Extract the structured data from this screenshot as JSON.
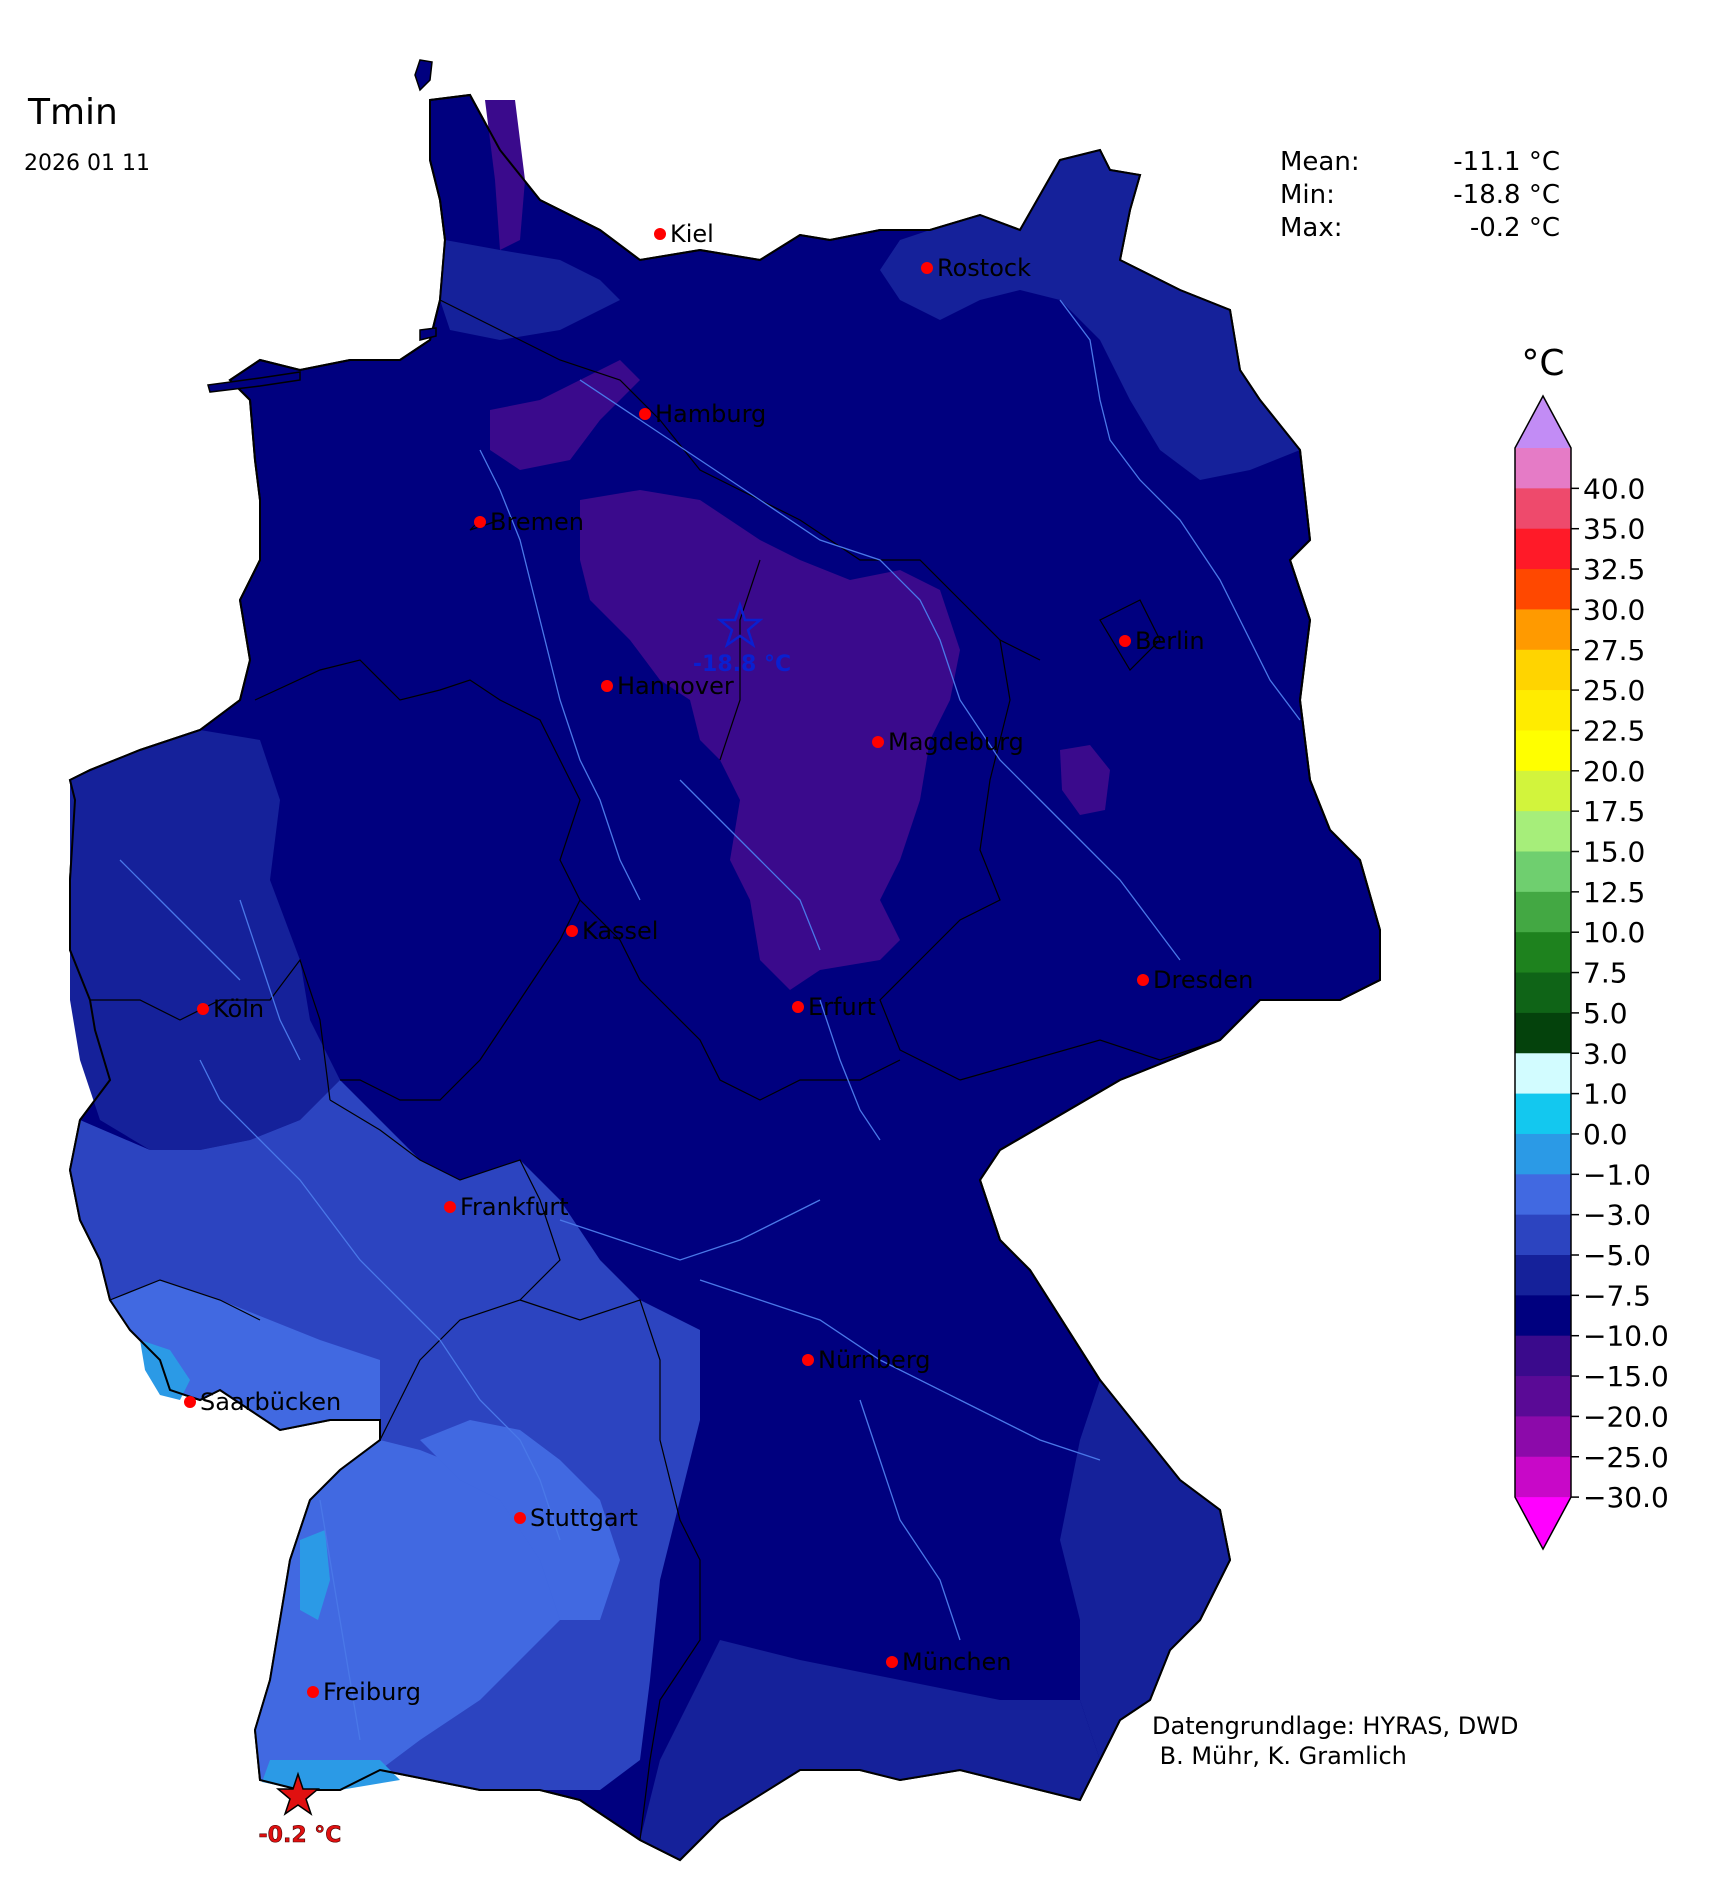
{
  "title": "Tmin",
  "date": "2026 01 11",
  "stats": {
    "mean_label": "Mean:",
    "mean_value": "-11.1 °C",
    "min_label": "Min:",
    "min_value": "-18.8 °C",
    "max_label": "Max:",
    "max_value": "-0.2 °C"
  },
  "colorbar": {
    "unit": "°C",
    "bins": [
      {
        "color": "#ff00ff"
      },
      {
        "color": "#c808c8",
        "label": "-30.0"
      },
      {
        "color": "#8c0aaa",
        "label": "-25.0"
      },
      {
        "color": "#5a0a96",
        "label": "-20.0"
      },
      {
        "color": "#3a0a8c",
        "label": "-15.0"
      },
      {
        "color": "#00007f",
        "label": "-10.0"
      },
      {
        "color": "#15219a",
        "label": "-7.5"
      },
      {
        "color": "#2c44c0",
        "label": "-5.0"
      },
      {
        "color": "#4169e1",
        "label": "-3.0"
      },
      {
        "color": "#2b9ae6",
        "label": "-1.0"
      },
      {
        "color": "#13c8ef",
        "label": "0.0"
      },
      {
        "color": "#d2fcff",
        "label": "1.0"
      },
      {
        "color": "#04420c",
        "label": "3.0"
      },
      {
        "color": "#0f6417",
        "label": "5.0"
      },
      {
        "color": "#1e821e",
        "label": "7.5"
      },
      {
        "color": "#43a843",
        "label": "10.0"
      },
      {
        "color": "#6fcf6f",
        "label": "12.5"
      },
      {
        "color": "#a6ee7a",
        "label": "15.0"
      },
      {
        "color": "#d2f43c",
        "label": "17.5"
      },
      {
        "color": "#ffff00",
        "label": "20.0"
      },
      {
        "color": "#ffec00",
        "label": "22.5"
      },
      {
        "color": "#ffd400",
        "label": "25.0"
      },
      {
        "color": "#ff9a00",
        "label": "27.5"
      },
      {
        "color": "#ff4800",
        "label": "30.0"
      },
      {
        "color": "#ff1a28",
        "label": "32.5"
      },
      {
        "color": "#ee4a6c",
        "label": "35.0"
      },
      {
        "color": "#e57bc6",
        "label": "40.0"
      },
      {
        "color": "#c28cf5"
      }
    ]
  },
  "cities": [
    {
      "name": "Kiel"
    },
    {
      "name": "Rostock"
    },
    {
      "name": "Hamburg"
    },
    {
      "name": "Bremen"
    },
    {
      "name": "Berlin"
    },
    {
      "name": "Hannover"
    },
    {
      "name": "Magdeburg"
    },
    {
      "name": "Kassel"
    },
    {
      "name": "Erfurt"
    },
    {
      "name": "Dresden"
    },
    {
      "name": "Köln"
    },
    {
      "name": "Frankfurt"
    },
    {
      "name": "Nürnberg"
    },
    {
      "name": "Saarbücken"
    },
    {
      "name": "Stuttgart"
    },
    {
      "name": "München"
    },
    {
      "name": "Freiburg"
    }
  ],
  "extremes": {
    "min_label": "-18.8 °C",
    "min_color": "#0a1fd0",
    "max_label": "-0.2 °C",
    "max_color": "#e01010"
  },
  "credits": {
    "line1": "Datengrundlage: HYRAS, DWD",
    "line2": " B. Mühr, K. Gramlich"
  },
  "colors": {
    "base": "#00007f",
    "region_cold": "#3a0a8c",
    "region_mild": "#15219a",
    "region_milder": "#2c44c0",
    "region_mildest": "#4169e1",
    "region_warm": "#2b9ae6",
    "river": "#4a78e8",
    "border": "#000000",
    "city_dot": "#ff0000"
  }
}
